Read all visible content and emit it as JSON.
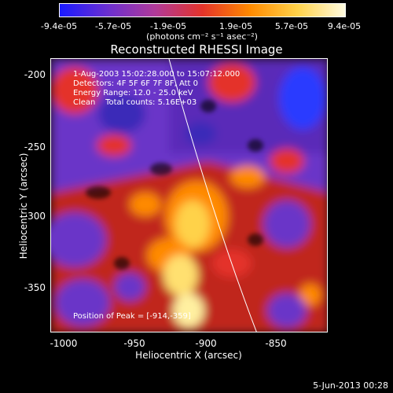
{
  "colorbar": {
    "ticks": [
      "-9.4e-05",
      "-5.7e-05",
      "-1.9e-05",
      "1.9e-05",
      "5.7e-05",
      "9.4e-05"
    ],
    "unit": "(photons cm⁻² s⁻¹ asec⁻²)",
    "colors": [
      "#1a1aff",
      "#6a2fd0",
      "#b03a9a",
      "#e4332a",
      "#ff8a00",
      "#ffd24a",
      "#fffbe0"
    ]
  },
  "plot": {
    "title": "Reconstructed RHESSI Image",
    "xlabel": "Heliocentric X (arcsec)",
    "ylabel": "Heliocentric Y (arcsec)",
    "xticks": [
      "-1000",
      "-950",
      "-900",
      "-850"
    ],
    "yticks": [
      "-200",
      "-250",
      "-300",
      "-350"
    ],
    "overlay": {
      "line1": "1-Aug-2003 15:02:28.000 to 15:07:12.000",
      "line2": "Detectors: 4F 5F 6F 7F 8F, Att 0",
      "line3": "Energy Range: 12.0 - 25.0 keV",
      "line4": "Clean    Total counts: 5.16E+03",
      "peak": "Position of Peak = [-914,-359]"
    }
  },
  "footer": {
    "date": "5-Jun-2013 00:28"
  }
}
